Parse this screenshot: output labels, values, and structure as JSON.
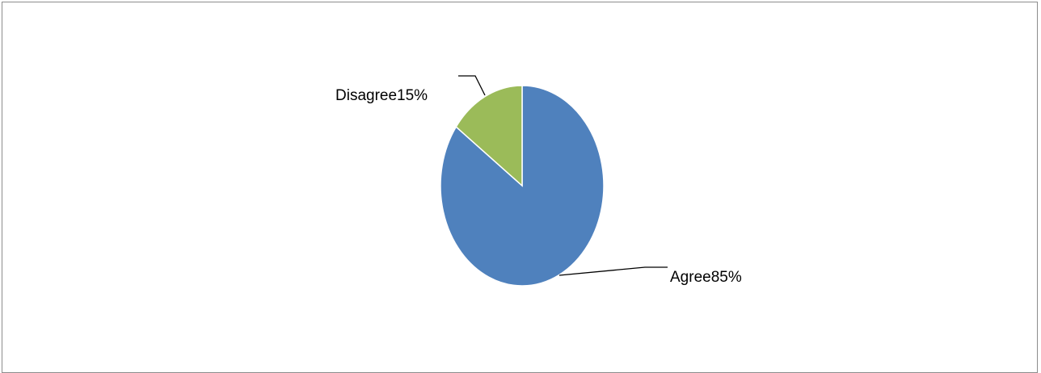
{
  "chart_data": {
    "type": "pie",
    "categories": [
      "Agree",
      "Disagree"
    ],
    "values": [
      85,
      15
    ],
    "labels": [
      "Agree85%",
      "Disagree15%"
    ],
    "colors": [
      "#4f81bd",
      "#9bbb59"
    ],
    "title": "",
    "legend": "none"
  }
}
